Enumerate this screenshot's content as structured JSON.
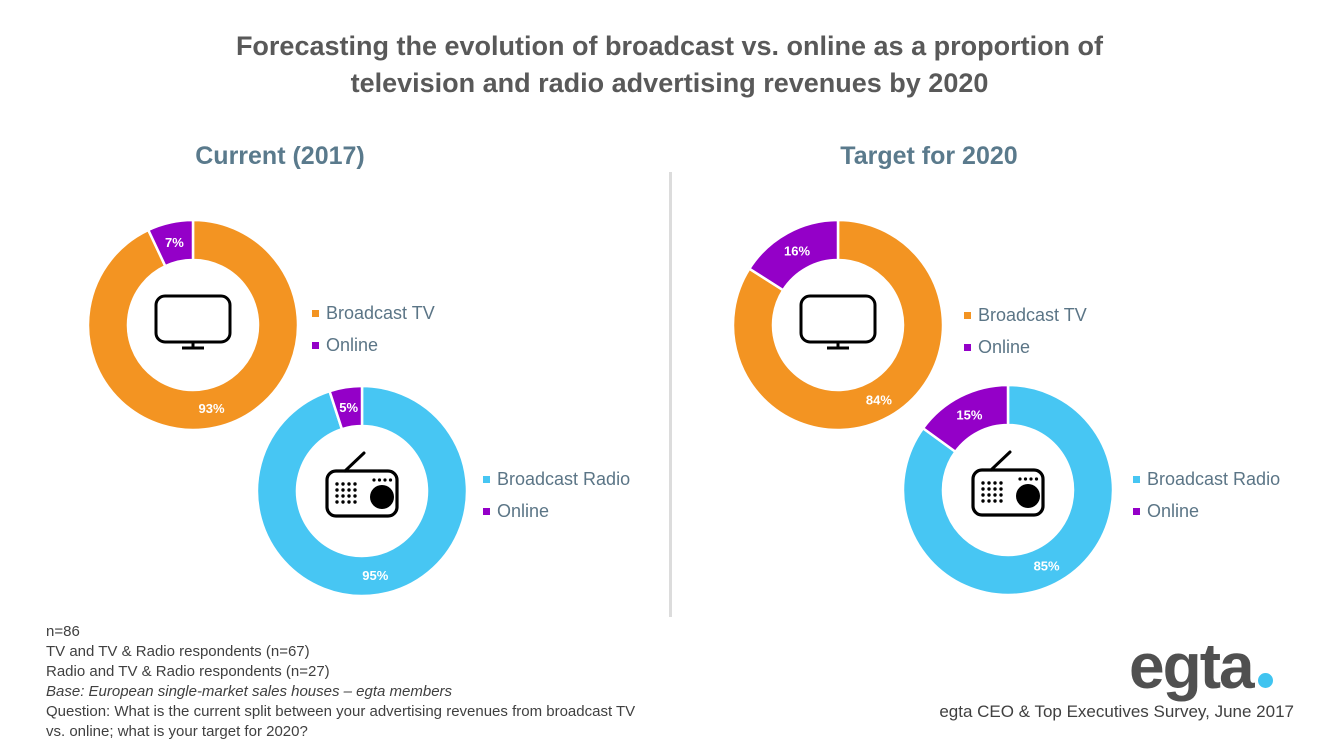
{
  "colors": {
    "broadcast_tv": "#f39422",
    "broadcast_radio": "#47c6f3",
    "online": "#9400c8",
    "separator": "#ffffff",
    "title_text": "#595959",
    "panel_title_text": "#5a7a8c",
    "legend_text": "#5b7586",
    "logo_dot": "#40c4f0"
  },
  "title": {
    "line1": "Forecasting the evolution of broadcast vs. online as a proportion of",
    "line2": "television and radio advertising revenues by 2020"
  },
  "panels": {
    "current": {
      "title": "Current (2017)"
    },
    "target": {
      "title": "Target for 2020"
    }
  },
  "legends": {
    "tv": {
      "broadcast": "Broadcast TV",
      "online": "Online"
    },
    "radio": {
      "broadcast": "Broadcast Radio",
      "online": "Online"
    }
  },
  "icons": {
    "tv": "tv-icon",
    "radio": "radio-icon"
  },
  "chart_data": [
    {
      "type": "pie",
      "variant": "donut",
      "panel": "current",
      "medium": "tv",
      "title": "Current (2017) - TV",
      "categories": [
        "Broadcast TV",
        "Online"
      ],
      "values": [
        93,
        7
      ],
      "labels": [
        "93%",
        "7%"
      ],
      "unit": "%",
      "legend": "right"
    },
    {
      "type": "pie",
      "variant": "donut",
      "panel": "current",
      "medium": "radio",
      "title": "Current (2017) - Radio",
      "categories": [
        "Broadcast Radio",
        "Online"
      ],
      "values": [
        95,
        5
      ],
      "labels": [
        "95%",
        "5%"
      ],
      "unit": "%",
      "legend": "right"
    },
    {
      "type": "pie",
      "variant": "donut",
      "panel": "target",
      "medium": "tv",
      "title": "Target for 2020 - TV",
      "categories": [
        "Broadcast TV",
        "Online"
      ],
      "values": [
        84,
        16
      ],
      "labels": [
        "84%",
        "16%"
      ],
      "unit": "%",
      "legend": "right"
    },
    {
      "type": "pie",
      "variant": "donut",
      "panel": "target",
      "medium": "radio",
      "title": "Target for 2020 - Radio",
      "categories": [
        "Broadcast Radio",
        "Online"
      ],
      "values": [
        85,
        15
      ],
      "labels": [
        "85%",
        "15%"
      ],
      "unit": "%",
      "legend": "right"
    }
  ],
  "footnotes": {
    "n_total": "n=86",
    "tv_respondents": "TV and TV & Radio respondents (n=67)",
    "radio_respondents": "Radio and TV & Radio respondents (n=27)",
    "base": "Base: European single-market sales houses – egta members",
    "question_line1": "Question: What is the current split between your advertising revenues from broadcast TV",
    "question_line2": "vs. online; what is your target for 2020?"
  },
  "branding": {
    "logo_text": "egta",
    "source": "egta CEO & Top Executives Survey, June 2017"
  }
}
